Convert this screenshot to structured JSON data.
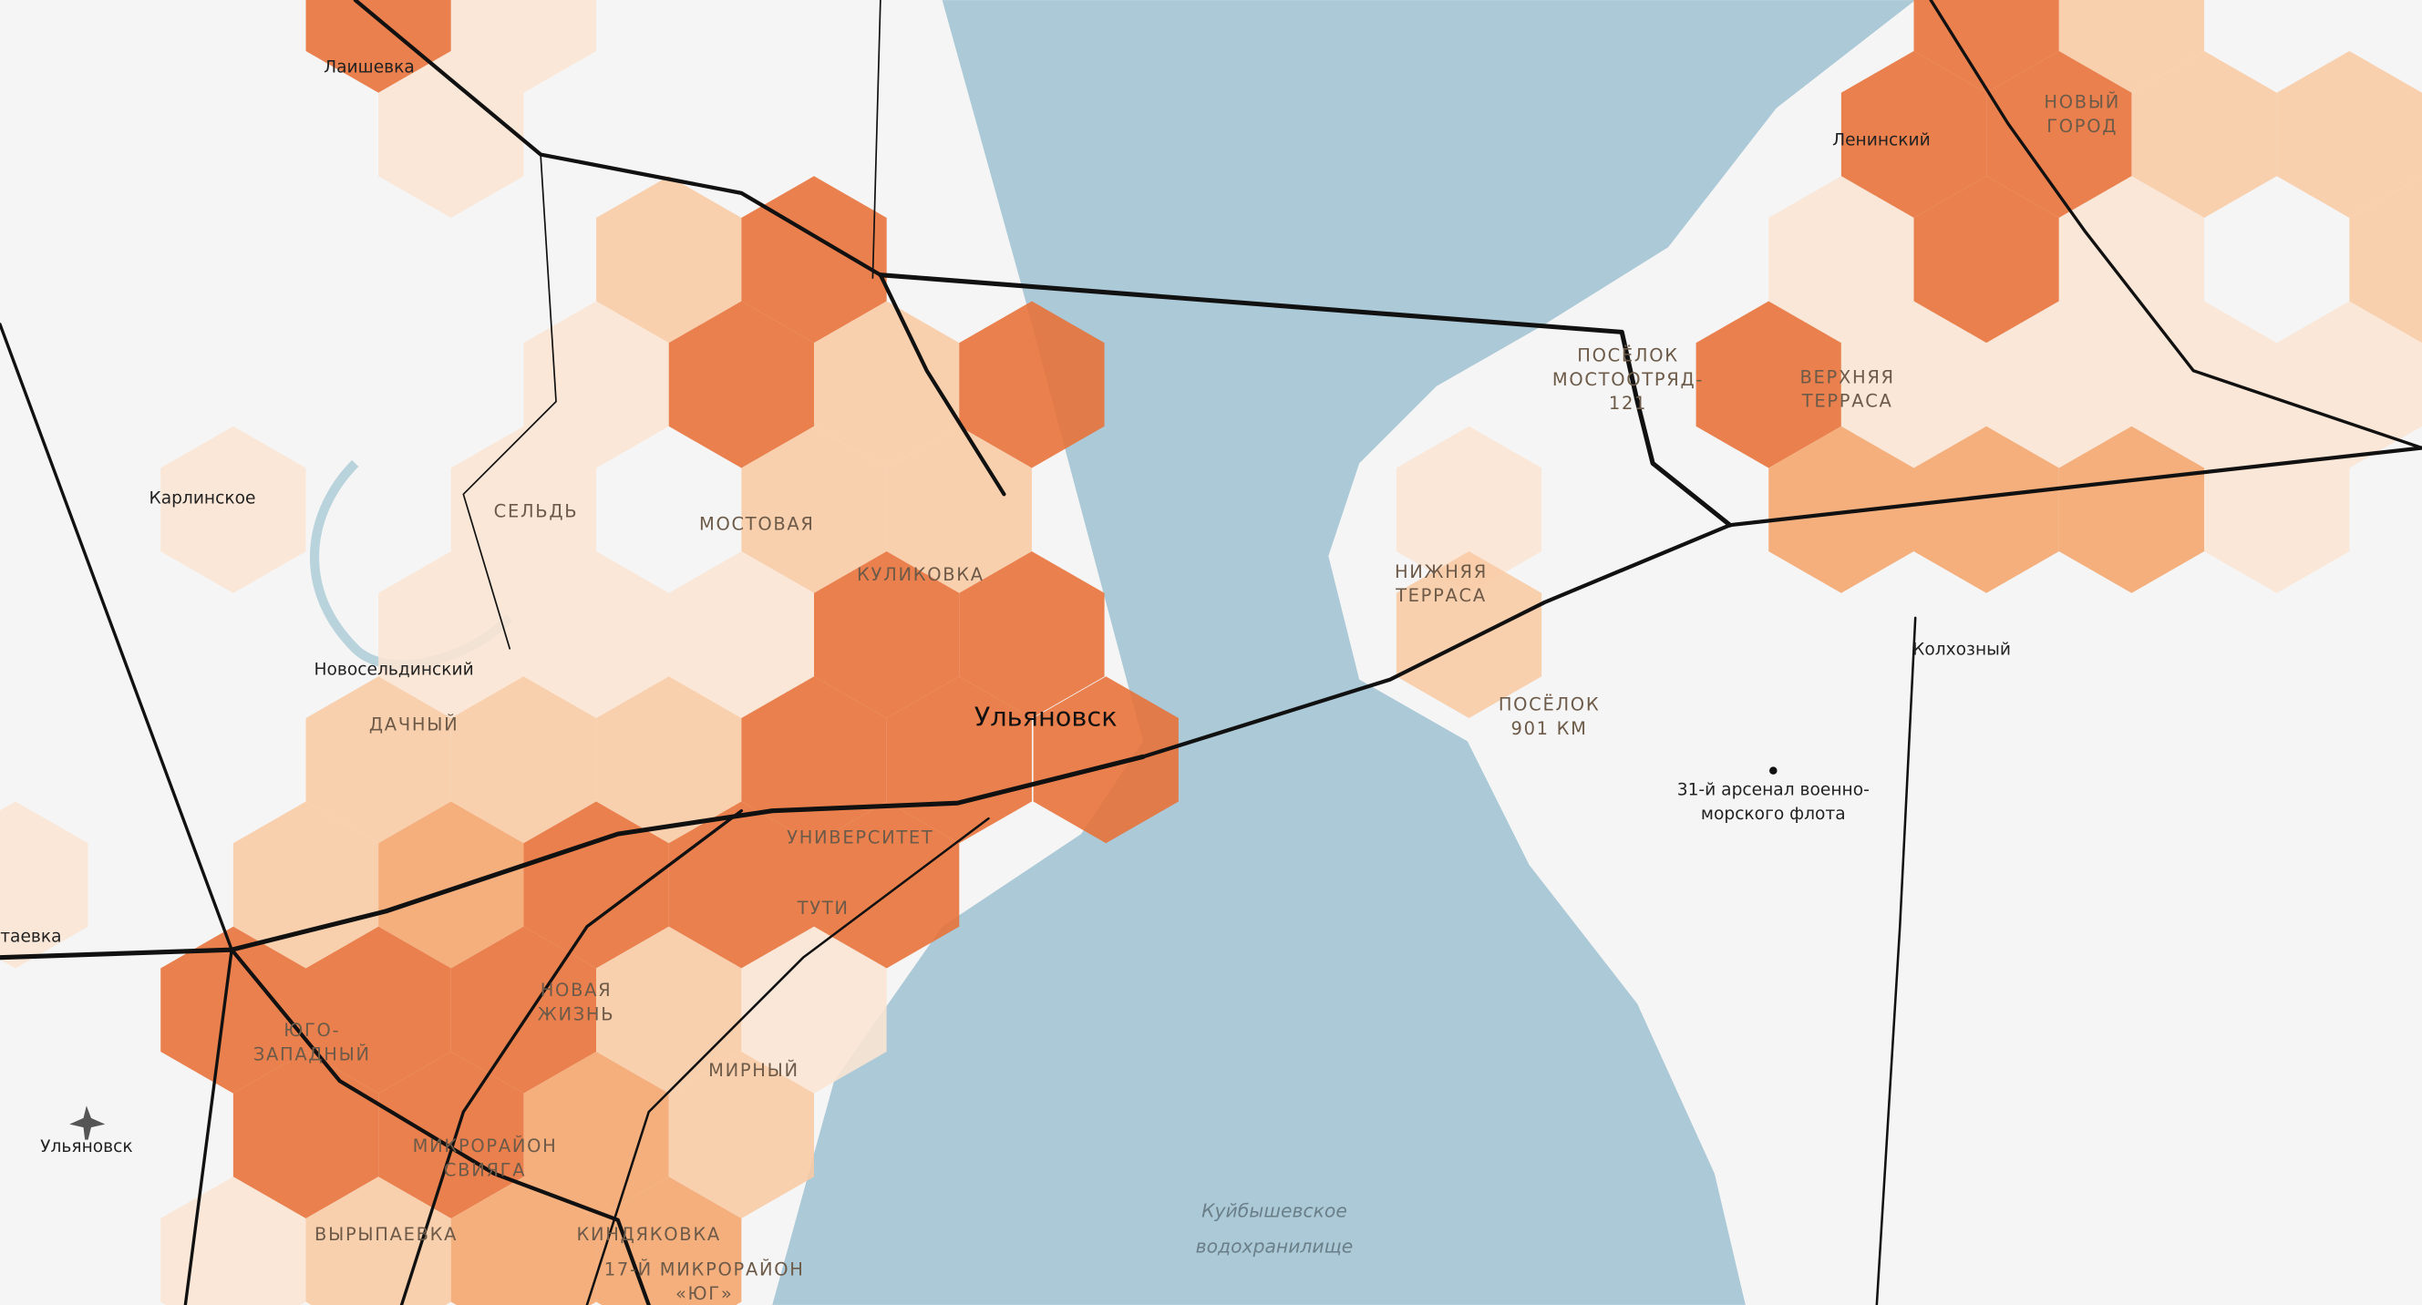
{
  "labels": [
    {
      "lines": [
        "Лаишевка"
      ]
    },
    {
      "lines": [
        "Карлинское"
      ]
    },
    {
      "lines": [
        "СЕЛЬДЬ"
      ]
    },
    {
      "lines": [
        "МОСТОВАЯ"
      ]
    },
    {
      "lines": [
        "КУЛИКОВКА"
      ]
    },
    {
      "lines": [
        "Новосельдинский"
      ]
    },
    {
      "lines": [
        "ДАЧНЫЙ"
      ]
    },
    {
      "lines": [
        "Ульяновск"
      ]
    },
    {
      "lines": [
        "УНИВЕРСИТЕТ"
      ]
    },
    {
      "lines": [
        "ТУТИ"
      ]
    },
    {
      "lines": [
        "таевка"
      ]
    },
    {
      "lines": [
        "НОВАЯ",
        "ЖИЗНЬ"
      ]
    },
    {
      "lines": [
        "ЮГО-",
        "ЗАПАДНЫЙ"
      ]
    },
    {
      "lines": [
        "МИРНЫЙ"
      ]
    },
    {
      "lines": [
        "Ульяновск"
      ]
    },
    {
      "lines": [
        "МИКРОРАЙОН",
        "СВИЯГА"
      ]
    },
    {
      "lines": [
        "ВЫРЫПАЕВКА"
      ]
    },
    {
      "lines": [
        "Куйбышевское",
        "водохранилище"
      ]
    },
    {
      "lines": [
        "КИНДЯКОВКА"
      ]
    },
    {
      "lines": [
        "17-Й МИКРОРАЙОН",
        "«ЮГ»"
      ]
    },
    {
      "lines": [
        "Ленинский"
      ]
    },
    {
      "lines": [
        "НОВЫЙ",
        "ГОРОД"
      ]
    },
    {
      "lines": [
        "ПОСЁЛОК",
        "МОСТООТРЯД-",
        "121"
      ]
    },
    {
      "lines": [
        "ВЕРХНЯЯ",
        "ТЕРРАСА"
      ]
    },
    {
      "lines": [
        "НИЖНЯЯ",
        "ТЕРРАСА"
      ]
    },
    {
      "lines": [
        "ПОСЁЛОК",
        "901 КМ"
      ]
    },
    {
      "lines": [
        "Колхозный"
      ]
    },
    {
      "lines": [
        "31-й арсенал военно-",
        "морского флота"
      ]
    }
  ]
}
